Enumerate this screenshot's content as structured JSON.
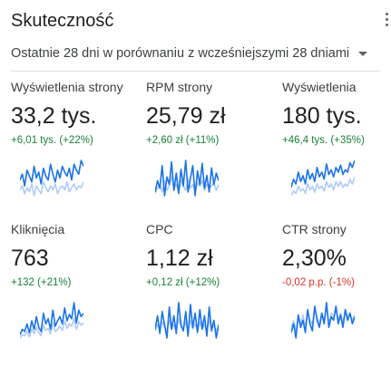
{
  "header": {
    "title": "Skuteczność"
  },
  "period": {
    "label": "Ostatnie 28 dni w porównaniu z wcześniejszymi 28 dniami"
  },
  "colors": {
    "current": "#1a73e8",
    "previous": "#aecbfa",
    "positive": "#188038",
    "negative": "#d93025"
  },
  "metrics": [
    {
      "label": "Wyświetlenia strony",
      "value": "33,2 tys.",
      "change": "+6,01 tys. (+22%)",
      "trend": "up",
      "current": [
        45,
        48,
        42,
        50,
        47,
        44,
        52,
        46,
        49,
        43,
        51,
        47,
        45,
        53,
        48,
        44,
        50,
        46,
        52,
        49,
        47,
        51,
        45,
        53,
        50,
        48,
        55,
        52
      ],
      "previous": [
        40,
        42,
        38,
        41,
        39,
        43,
        37,
        42,
        40,
        38,
        44,
        41,
        39,
        42,
        40,
        43,
        38,
        41,
        42,
        40,
        44,
        39,
        41,
        43,
        40,
        42,
        41,
        44
      ]
    },
    {
      "label": "RPM strony",
      "value": "25,79 zł",
      "change": "+2,60 zł (+11%)",
      "trend": "up",
      "current": [
        20,
        35,
        25,
        55,
        15,
        40,
        30,
        60,
        22,
        45,
        18,
        50,
        28,
        62,
        20,
        38,
        55,
        15,
        48,
        30,
        58,
        25,
        42,
        20,
        52,
        30,
        45,
        35
      ],
      "previous": [
        18,
        25,
        30,
        20,
        35,
        22,
        28,
        40,
        25,
        30,
        20,
        35,
        28,
        22,
        38,
        25,
        30,
        20,
        32,
        28,
        35,
        22,
        30,
        25,
        28,
        32,
        22,
        30
      ]
    },
    {
      "label": "Wyświetlenia",
      "value": "180 tys.",
      "change": "+46,4 tys. (+35%)",
      "trend": "up",
      "current": [
        35,
        42,
        38,
        48,
        40,
        45,
        38,
        50,
        42,
        47,
        40,
        52,
        44,
        48,
        42,
        55,
        46,
        50,
        44,
        52,
        48,
        54,
        46,
        50,
        48,
        56,
        52,
        58
      ],
      "previous": [
        28,
        32,
        30,
        36,
        32,
        34,
        30,
        38,
        33,
        36,
        31,
        38,
        34,
        36,
        32,
        40,
        35,
        38,
        33,
        40,
        36,
        40,
        35,
        38,
        36,
        42,
        38,
        44
      ]
    },
    {
      "label": "Kliknięcia",
      "value": "763",
      "change": "+132 (+21%)",
      "trend": "up",
      "current": [
        25,
        30,
        28,
        35,
        27,
        38,
        30,
        42,
        32,
        28,
        45,
        35,
        40,
        30,
        48,
        33,
        38,
        42,
        35,
        50,
        38,
        44,
        40,
        55,
        36,
        48,
        42,
        45
      ],
      "previous": [
        22,
        25,
        24,
        28,
        23,
        30,
        26,
        32,
        27,
        24,
        34,
        29,
        31,
        26,
        36,
        28,
        30,
        33,
        29,
        38,
        31,
        35,
        33,
        40,
        30,
        37,
        34,
        36
      ]
    },
    {
      "label": "CPC",
      "value": "1,12 zł",
      "change": "+0,12 zł (+12%)",
      "trend": "up",
      "current": [
        30,
        45,
        25,
        50,
        35,
        20,
        55,
        30,
        45,
        25,
        60,
        35,
        28,
        50,
        22,
        58,
        32,
        48,
        26,
        52,
        30,
        45,
        22,
        55,
        28,
        40,
        20,
        35
      ],
      "previous": [
        28,
        35,
        30,
        38,
        32,
        28,
        40,
        30,
        35,
        28,
        42,
        32,
        30,
        38,
        28,
        40,
        30,
        36,
        28,
        38,
        30,
        35,
        28,
        40,
        30,
        34,
        28,
        32
      ]
    },
    {
      "label": "CTR strony",
      "value": "2,30%",
      "change": "-0,02 p.p. (-1%)",
      "trend": "down",
      "current": [
        35,
        40,
        32,
        45,
        38,
        42,
        35,
        48,
        40,
        36,
        50,
        42,
        38,
        46,
        40,
        52,
        38,
        44,
        42,
        50,
        40,
        45,
        38,
        48,
        42,
        46,
        40,
        44
      ],
      "previous": [
        38,
        42,
        36,
        44,
        40,
        45,
        38,
        46,
        42,
        40,
        48,
        44,
        40,
        46,
        42,
        50,
        40,
        46,
        44,
        48,
        42,
        46,
        40,
        48,
        44,
        46,
        42,
        45
      ]
    }
  ]
}
